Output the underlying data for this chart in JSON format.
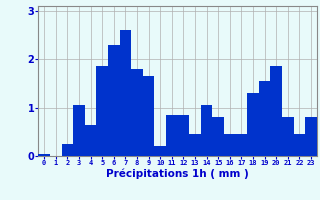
{
  "categories": [
    0,
    1,
    2,
    3,
    4,
    5,
    6,
    7,
    8,
    9,
    10,
    11,
    12,
    13,
    14,
    15,
    16,
    17,
    18,
    19,
    20,
    21,
    22,
    23
  ],
  "values": [
    0.05,
    0.0,
    0.25,
    1.05,
    0.65,
    1.85,
    2.3,
    2.6,
    1.8,
    1.65,
    0.2,
    0.85,
    0.85,
    0.45,
    1.05,
    0.8,
    0.45,
    0.45,
    1.3,
    1.55,
    1.85,
    0.8,
    0.45,
    0.8
  ],
  "bar_color": "#0033cc",
  "background_color": "#e8fafa",
  "grid_color": "#b0b0b0",
  "xlabel": "Précipitations 1h ( mm )",
  "xlabel_color": "#0000cc",
  "tick_color": "#0000cc",
  "ylim": [
    0,
    3.1
  ],
  "yticks": [
    0,
    1,
    2,
    3
  ],
  "xlim": [
    -0.5,
    23.5
  ]
}
